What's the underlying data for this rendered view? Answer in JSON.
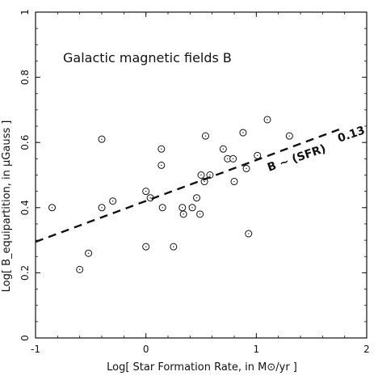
{
  "chart_data": {
    "type": "scatter",
    "title": "Galactic magnetic fields B",
    "xlabel": "Log[ Star Formation Rate, in M⊙/yr ]",
    "ylabel": "Log[ B_equipartition, in μGauss ]",
    "xlim": [
      -1,
      2
    ],
    "ylim": [
      0,
      1
    ],
    "x_ticks": [
      "-1",
      "0",
      "1",
      "2"
    ],
    "y_ticks": [
      "0",
      "0.2",
      "0.4",
      "0.6",
      "0.8",
      "1"
    ],
    "grid": false,
    "points": [
      {
        "x": -0.85,
        "y": 0.4
      },
      {
        "x": -0.6,
        "y": 0.21
      },
      {
        "x": -0.52,
        "y": 0.26
      },
      {
        "x": -0.4,
        "y": 0.61
      },
      {
        "x": -0.4,
        "y": 0.4
      },
      {
        "x": -0.3,
        "y": 0.42
      },
      {
        "x": 0.0,
        "y": 0.45
      },
      {
        "x": 0.0,
        "y": 0.28
      },
      {
        "x": 0.04,
        "y": 0.43
      },
      {
        "x": 0.14,
        "y": 0.58
      },
      {
        "x": 0.14,
        "y": 0.53
      },
      {
        "x": 0.15,
        "y": 0.4
      },
      {
        "x": 0.25,
        "y": 0.28
      },
      {
        "x": 0.33,
        "y": 0.4
      },
      {
        "x": 0.34,
        "y": 0.38
      },
      {
        "x": 0.42,
        "y": 0.4
      },
      {
        "x": 0.46,
        "y": 0.43
      },
      {
        "x": 0.49,
        "y": 0.38
      },
      {
        "x": 0.5,
        "y": 0.5
      },
      {
        "x": 0.53,
        "y": 0.48
      },
      {
        "x": 0.54,
        "y": 0.62
      },
      {
        "x": 0.58,
        "y": 0.5
      },
      {
        "x": 0.7,
        "y": 0.58
      },
      {
        "x": 0.74,
        "y": 0.55
      },
      {
        "x": 0.79,
        "y": 0.55
      },
      {
        "x": 0.8,
        "y": 0.48
      },
      {
        "x": 0.88,
        "y": 0.63
      },
      {
        "x": 0.91,
        "y": 0.52
      },
      {
        "x": 0.93,
        "y": 0.32
      },
      {
        "x": 1.01,
        "y": 0.56
      },
      {
        "x": 1.1,
        "y": 0.67
      },
      {
        "x": 1.3,
        "y": 0.62
      }
    ],
    "fit_line": {
      "x": [
        -1.0,
        1.75
      ],
      "y": [
        0.295,
        0.64
      ],
      "style": "dashed",
      "label": "B ~ (SFR)",
      "label_exponent": "0.13"
    }
  }
}
